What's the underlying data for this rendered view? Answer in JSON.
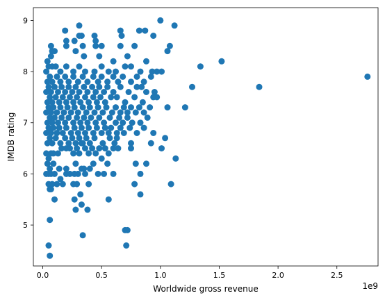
{
  "chart_data": {
    "type": "scatter",
    "title": "",
    "xlabel": "Worldwide gross revenue",
    "ylabel": "IMDB rating",
    "x_offset_label": "1e9",
    "xlim": [
      -0.08,
      2.85
    ],
    "ylim": [
      4.2,
      9.25
    ],
    "x_ticks": [
      0.0,
      0.5,
      1.0,
      1.5,
      2.0,
      2.5
    ],
    "x_tick_labels": [
      "0.0",
      "0.5",
      "1.0",
      "1.5",
      "2.0",
      "2.5"
    ],
    "y_ticks": [
      5,
      6,
      7,
      8,
      9
    ],
    "y_tick_labels": [
      "5",
      "6",
      "7",
      "8",
      "9"
    ],
    "grid": false,
    "legend": "none",
    "marker_color": "#1f77b4",
    "points": [
      [
        0.05,
        4.6
      ],
      [
        0.06,
        4.4
      ],
      [
        0.06,
        5.1
      ],
      [
        0.1,
        5.5
      ],
      [
        0.34,
        4.8
      ],
      [
        0.7,
        4.9
      ],
      [
        0.72,
        4.9
      ],
      [
        0.71,
        4.6
      ],
      [
        0.28,
        5.3
      ],
      [
        0.33,
        5.4
      ],
      [
        0.38,
        5.3
      ],
      [
        0.56,
        5.5
      ],
      [
        0.83,
        5.6
      ],
      [
        0.32,
        5.6
      ],
      [
        0.27,
        5.5
      ],
      [
        0.05,
        5.8
      ],
      [
        0.06,
        5.7
      ],
      [
        0.08,
        5.8
      ],
      [
        0.07,
        5.7
      ],
      [
        0.12,
        5.8
      ],
      [
        0.17,
        5.8
      ],
      [
        0.26,
        5.8
      ],
      [
        0.29,
        5.8
      ],
      [
        0.39,
        5.8
      ],
      [
        0.78,
        5.8
      ],
      [
        1.09,
        5.8
      ],
      [
        0.03,
        6.0
      ],
      [
        0.05,
        6.0
      ],
      [
        0.07,
        6.0
      ],
      [
        0.1,
        6.0
      ],
      [
        0.15,
        5.9
      ],
      [
        0.2,
        6.0
      ],
      [
        0.23,
        6.0
      ],
      [
        0.27,
        6.0
      ],
      [
        0.3,
        6.0
      ],
      [
        0.33,
        6.1
      ],
      [
        0.36,
        6.0
      ],
      [
        0.4,
        6.1
      ],
      [
        0.47,
        6.0
      ],
      [
        0.52,
        6.0
      ],
      [
        0.6,
        6.0
      ],
      [
        0.83,
        6.0
      ],
      [
        0.04,
        6.2
      ],
      [
        0.06,
        6.1
      ],
      [
        0.09,
        6.2
      ],
      [
        0.14,
        6.1
      ],
      [
        0.2,
        6.1
      ],
      [
        0.28,
        6.2
      ],
      [
        0.35,
        6.1
      ],
      [
        0.43,
        6.2
      ],
      [
        0.5,
        6.3
      ],
      [
        0.55,
        6.2
      ],
      [
        0.79,
        6.2
      ],
      [
        0.88,
        6.2
      ],
      [
        1.13,
        6.3
      ],
      [
        0.03,
        6.4
      ],
      [
        0.05,
        6.3
      ],
      [
        0.07,
        6.4
      ],
      [
        0.09,
        6.4
      ],
      [
        0.13,
        6.4
      ],
      [
        0.16,
        6.5
      ],
      [
        0.2,
        6.5
      ],
      [
        0.23,
        6.5
      ],
      [
        0.26,
        6.4
      ],
      [
        0.29,
        6.5
      ],
      [
        0.31,
        6.4
      ],
      [
        0.33,
        6.6
      ],
      [
        0.36,
        6.5
      ],
      [
        0.39,
        6.4
      ],
      [
        0.42,
        6.5
      ],
      [
        0.45,
        6.4
      ],
      [
        0.48,
        6.5
      ],
      [
        0.53,
        6.5
      ],
      [
        0.56,
        6.4
      ],
      [
        0.6,
        6.5
      ],
      [
        0.64,
        6.5
      ],
      [
        0.75,
        6.5
      ],
      [
        1.01,
        6.5
      ],
      [
        0.04,
        6.6
      ],
      [
        0.06,
        6.7
      ],
      [
        0.08,
        6.6
      ],
      [
        0.11,
        6.7
      ],
      [
        0.15,
        6.6
      ],
      [
        0.19,
        6.7
      ],
      [
        0.22,
        6.6
      ],
      [
        0.25,
        6.7
      ],
      [
        0.28,
        6.6
      ],
      [
        0.31,
        6.7
      ],
      [
        0.34,
        6.6
      ],
      [
        0.37,
        6.7
      ],
      [
        0.4,
        6.6
      ],
      [
        0.44,
        6.7
      ],
      [
        0.51,
        6.6
      ],
      [
        0.57,
        6.7
      ],
      [
        0.61,
        6.6
      ],
      [
        0.63,
        6.7
      ],
      [
        0.75,
        6.6
      ],
      [
        0.92,
        6.6
      ],
      [
        1.04,
        6.7
      ],
      [
        0.03,
        6.8
      ],
      [
        0.05,
        6.9
      ],
      [
        0.07,
        6.8
      ],
      [
        0.09,
        6.9
      ],
      [
        0.12,
        6.8
      ],
      [
        0.14,
        6.9
      ],
      [
        0.17,
        6.8
      ],
      [
        0.2,
        6.9
      ],
      [
        0.24,
        6.8
      ],
      [
        0.27,
        6.9
      ],
      [
        0.3,
        6.8
      ],
      [
        0.33,
        6.9
      ],
      [
        0.36,
        6.8
      ],
      [
        0.39,
        6.9
      ],
      [
        0.43,
        6.8
      ],
      [
        0.46,
        6.9
      ],
      [
        0.5,
        6.8
      ],
      [
        0.53,
        6.9
      ],
      [
        0.56,
        6.8
      ],
      [
        0.58,
        6.9
      ],
      [
        0.63,
        6.8
      ],
      [
        0.66,
        6.9
      ],
      [
        0.69,
        6.8
      ],
      [
        0.74,
        6.9
      ],
      [
        0.8,
        6.8
      ],
      [
        0.86,
        6.9
      ],
      [
        0.94,
        6.8
      ],
      [
        0.04,
        7.0
      ],
      [
        0.06,
        7.1
      ],
      [
        0.08,
        7.0
      ],
      [
        0.1,
        7.1
      ],
      [
        0.13,
        7.0
      ],
      [
        0.16,
        7.1
      ],
      [
        0.19,
        7.0
      ],
      [
        0.22,
        7.1
      ],
      [
        0.26,
        7.0
      ],
      [
        0.29,
        7.1
      ],
      [
        0.32,
        7.0
      ],
      [
        0.35,
        7.1
      ],
      [
        0.38,
        7.0
      ],
      [
        0.41,
        7.1
      ],
      [
        0.45,
        7.0
      ],
      [
        0.48,
        7.1
      ],
      [
        0.52,
        7.0
      ],
      [
        0.57,
        7.1
      ],
      [
        0.62,
        7.0
      ],
      [
        0.65,
        7.1
      ],
      [
        0.68,
        7.0
      ],
      [
        0.72,
        7.1
      ],
      [
        0.76,
        7.0
      ],
      [
        0.83,
        7.0
      ],
      [
        0.89,
        7.1
      ],
      [
        0.03,
        7.2
      ],
      [
        0.05,
        7.3
      ],
      [
        0.07,
        7.2
      ],
      [
        0.09,
        7.3
      ],
      [
        0.12,
        7.2
      ],
      [
        0.15,
        7.3
      ],
      [
        0.18,
        7.2
      ],
      [
        0.21,
        7.3
      ],
      [
        0.24,
        7.2
      ],
      [
        0.27,
        7.3
      ],
      [
        0.3,
        7.2
      ],
      [
        0.34,
        7.3
      ],
      [
        0.37,
        7.2
      ],
      [
        0.4,
        7.3
      ],
      [
        0.44,
        7.2
      ],
      [
        0.47,
        7.3
      ],
      [
        0.51,
        7.2
      ],
      [
        0.54,
        7.3
      ],
      [
        0.59,
        7.2
      ],
      [
        0.62,
        7.3
      ],
      [
        0.66,
        7.2
      ],
      [
        0.69,
        7.3
      ],
      [
        0.72,
        7.2
      ],
      [
        0.75,
        7.3
      ],
      [
        0.79,
        7.2
      ],
      [
        0.82,
        7.3
      ],
      [
        0.86,
        7.2
      ],
      [
        0.91,
        7.3
      ],
      [
        1.06,
        7.3
      ],
      [
        1.21,
        7.3
      ],
      [
        0.04,
        7.4
      ],
      [
        0.06,
        7.5
      ],
      [
        0.08,
        7.4
      ],
      [
        0.11,
        7.5
      ],
      [
        0.14,
        7.4
      ],
      [
        0.17,
        7.5
      ],
      [
        0.2,
        7.4
      ],
      [
        0.23,
        7.5
      ],
      [
        0.26,
        7.4
      ],
      [
        0.29,
        7.5
      ],
      [
        0.32,
        7.4
      ],
      [
        0.36,
        7.5
      ],
      [
        0.39,
        7.4
      ],
      [
        0.43,
        7.5
      ],
      [
        0.46,
        7.4
      ],
      [
        0.49,
        7.5
      ],
      [
        0.53,
        7.4
      ],
      [
        0.58,
        7.5
      ],
      [
        0.63,
        7.5
      ],
      [
        0.7,
        7.4
      ],
      [
        0.78,
        7.5
      ],
      [
        0.85,
        7.4
      ],
      [
        0.94,
        7.5
      ],
      [
        0.97,
        7.5
      ],
      [
        0.03,
        7.6
      ],
      [
        0.05,
        7.7
      ],
      [
        0.07,
        7.6
      ],
      [
        0.1,
        7.7
      ],
      [
        0.13,
        7.6
      ],
      [
        0.16,
        7.7
      ],
      [
        0.19,
        7.6
      ],
      [
        0.22,
        7.7
      ],
      [
        0.25,
        7.6
      ],
      [
        0.28,
        7.7
      ],
      [
        0.31,
        7.6
      ],
      [
        0.35,
        7.7
      ],
      [
        0.38,
        7.6
      ],
      [
        0.42,
        7.7
      ],
      [
        0.45,
        7.6
      ],
      [
        0.48,
        7.7
      ],
      [
        0.52,
        7.6
      ],
      [
        0.55,
        7.7
      ],
      [
        0.6,
        7.6
      ],
      [
        0.66,
        7.7
      ],
      [
        0.73,
        7.6
      ],
      [
        0.8,
        7.7
      ],
      [
        0.84,
        7.7
      ],
      [
        0.88,
        7.6
      ],
      [
        0.95,
        7.6
      ],
      [
        1.27,
        7.7
      ],
      [
        1.84,
        7.7
      ],
      [
        2.76,
        7.9
      ],
      [
        0.04,
        7.8
      ],
      [
        0.06,
        7.9
      ],
      [
        0.08,
        7.8
      ],
      [
        0.12,
        7.9
      ],
      [
        0.15,
        7.8
      ],
      [
        0.19,
        7.9
      ],
      [
        0.22,
        7.8
      ],
      [
        0.26,
        7.9
      ],
      [
        0.3,
        7.8
      ],
      [
        0.34,
        7.9
      ],
      [
        0.38,
        7.8
      ],
      [
        0.43,
        7.9
      ],
      [
        0.47,
        7.8
      ],
      [
        0.5,
        7.9
      ],
      [
        0.55,
        7.8
      ],
      [
        0.6,
        7.9
      ],
      [
        0.64,
        7.8
      ],
      [
        0.68,
        7.9
      ],
      [
        0.75,
        7.8
      ],
      [
        0.8,
        7.9
      ],
      [
        0.86,
        7.8
      ],
      [
        0.92,
        7.9
      ],
      [
        0.03,
        8.0
      ],
      [
        0.05,
        8.1
      ],
      [
        0.08,
        8.1
      ],
      [
        0.11,
        8.1
      ],
      [
        0.15,
        8.0
      ],
      [
        0.2,
        8.1
      ],
      [
        0.26,
        8.0
      ],
      [
        0.31,
        8.1
      ],
      [
        0.36,
        8.0
      ],
      [
        0.44,
        8.0
      ],
      [
        0.5,
        8.1
      ],
      [
        0.56,
        8.0
      ],
      [
        0.62,
        8.0
      ],
      [
        0.7,
        8.1
      ],
      [
        0.75,
        8.1
      ],
      [
        0.83,
        8.0
      ],
      [
        0.93,
        8.0
      ],
      [
        0.97,
        8.0
      ],
      [
        1.01,
        8.0
      ],
      [
        1.34,
        8.1
      ],
      [
        1.52,
        8.2
      ],
      [
        0.04,
        8.2
      ],
      [
        0.07,
        8.3
      ],
      [
        0.1,
        8.4
      ],
      [
        0.35,
        8.3
      ],
      [
        0.48,
        8.3
      ],
      [
        0.6,
        8.2
      ],
      [
        0.72,
        8.3
      ],
      [
        0.88,
        8.2
      ],
      [
        1.06,
        8.4
      ],
      [
        0.07,
        8.5
      ],
      [
        0.08,
        8.4
      ],
      [
        0.2,
        8.5
      ],
      [
        0.28,
        8.4
      ],
      [
        0.34,
        8.5
      ],
      [
        0.45,
        8.5
      ],
      [
        0.5,
        8.5
      ],
      [
        0.66,
        8.5
      ],
      [
        0.78,
        8.5
      ],
      [
        1.08,
        8.5
      ],
      [
        0.2,
        8.6
      ],
      [
        0.27,
        8.6
      ],
      [
        0.45,
        8.6
      ],
      [
        0.67,
        8.7
      ],
      [
        0.31,
        8.7
      ],
      [
        0.33,
        8.7
      ],
      [
        0.44,
        8.7
      ],
      [
        0.94,
        8.7
      ],
      [
        0.19,
        8.8
      ],
      [
        0.66,
        8.8
      ],
      [
        0.82,
        8.8
      ],
      [
        0.87,
        8.8
      ],
      [
        0.31,
        8.9
      ],
      [
        1.12,
        8.9
      ],
      [
        1.0,
        9.0
      ]
    ]
  }
}
